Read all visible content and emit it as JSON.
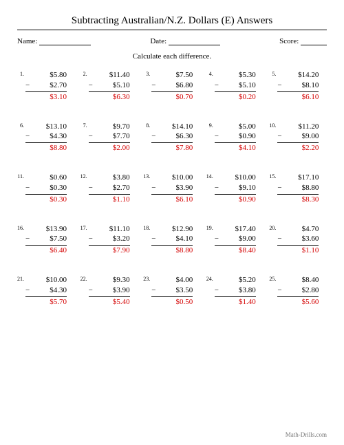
{
  "title": "Subtracting Australian/N.Z. Dollars (E) Answers",
  "meta": {
    "name_label": "Name:",
    "date_label": "Date:",
    "score_label": "Score:"
  },
  "instruction": "Calculate each difference.",
  "footer": "Math-Drills.com",
  "grid": {
    "cols": 5,
    "rows": 5,
    "row_gap": 28,
    "col_gap": 8
  },
  "colors": {
    "answer": "#d40000",
    "text": "#000000",
    "background": "#ffffff",
    "footer": "#777777"
  },
  "fonts": {
    "title": 15,
    "body": 11,
    "number": 8,
    "footer": 9,
    "family": "Times New Roman"
  },
  "problems": [
    {
      "n": "1.",
      "a": "$5.80",
      "b": "$2.70",
      "ans": "$3.10"
    },
    {
      "n": "2.",
      "a": "$11.40",
      "b": "$5.10",
      "ans": "$6.30"
    },
    {
      "n": "3.",
      "a": "$7.50",
      "b": "$6.80",
      "ans": "$0.70"
    },
    {
      "n": "4.",
      "a": "$5.30",
      "b": "$5.10",
      "ans": "$0.20"
    },
    {
      "n": "5.",
      "a": "$14.20",
      "b": "$8.10",
      "ans": "$6.10"
    },
    {
      "n": "6.",
      "a": "$13.10",
      "b": "$4.30",
      "ans": "$8.80"
    },
    {
      "n": "7.",
      "a": "$9.70",
      "b": "$7.70",
      "ans": "$2.00"
    },
    {
      "n": "8.",
      "a": "$14.10",
      "b": "$6.30",
      "ans": "$7.80"
    },
    {
      "n": "9.",
      "a": "$5.00",
      "b": "$0.90",
      "ans": "$4.10"
    },
    {
      "n": "10.",
      "a": "$11.20",
      "b": "$9.00",
      "ans": "$2.20"
    },
    {
      "n": "11.",
      "a": "$0.60",
      "b": "$0.30",
      "ans": "$0.30"
    },
    {
      "n": "12.",
      "a": "$3.80",
      "b": "$2.70",
      "ans": "$1.10"
    },
    {
      "n": "13.",
      "a": "$10.00",
      "b": "$3.90",
      "ans": "$6.10"
    },
    {
      "n": "14.",
      "a": "$10.00",
      "b": "$9.10",
      "ans": "$0.90"
    },
    {
      "n": "15.",
      "a": "$17.10",
      "b": "$8.80",
      "ans": "$8.30"
    },
    {
      "n": "16.",
      "a": "$13.90",
      "b": "$7.50",
      "ans": "$6.40"
    },
    {
      "n": "17.",
      "a": "$11.10",
      "b": "$3.20",
      "ans": "$7.90"
    },
    {
      "n": "18.",
      "a": "$12.90",
      "b": "$4.10",
      "ans": "$8.80"
    },
    {
      "n": "19.",
      "a": "$17.40",
      "b": "$9.00",
      "ans": "$8.40"
    },
    {
      "n": "20.",
      "a": "$4.70",
      "b": "$3.60",
      "ans": "$1.10"
    },
    {
      "n": "21.",
      "a": "$10.00",
      "b": "$4.30",
      "ans": "$5.70"
    },
    {
      "n": "22.",
      "a": "$9.30",
      "b": "$3.90",
      "ans": "$5.40"
    },
    {
      "n": "23.",
      "a": "$4.00",
      "b": "$3.50",
      "ans": "$0.50"
    },
    {
      "n": "24.",
      "a": "$5.20",
      "b": "$3.80",
      "ans": "$1.40"
    },
    {
      "n": "25.",
      "a": "$8.40",
      "b": "$2.80",
      "ans": "$5.60"
    }
  ]
}
